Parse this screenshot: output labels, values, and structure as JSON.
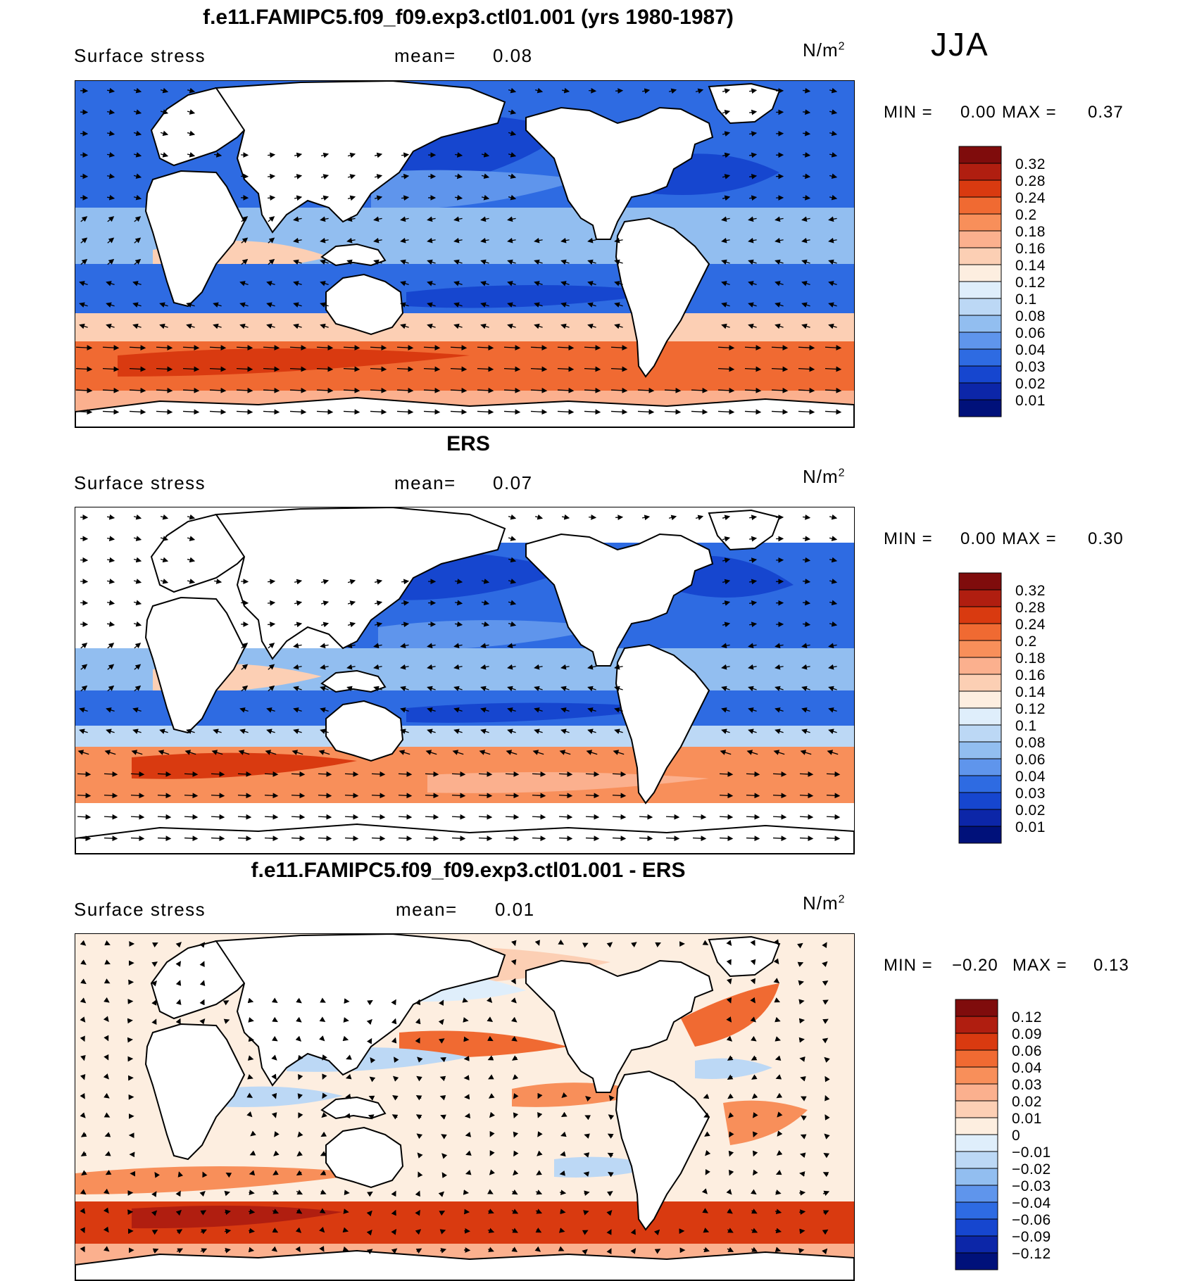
{
  "season": "JJA",
  "panels": [
    {
      "title": "f.e11.FAMIPC5.f09_f09.exp3.ctl01.001 (yrs 1980-1987)",
      "field": "Surface stress",
      "mean_label": "mean=",
      "mean_value": "0.08",
      "unit": "N/m",
      "unit_sup": "2",
      "min_label": "MIN =",
      "min_value": "0.00",
      "max_label": "MAX =",
      "max_value": "0.37",
      "colorbar": {
        "labels": [
          "0.32",
          "0.28",
          "0.24",
          "0.2",
          "0.18",
          "0.16",
          "0.14",
          "0.12",
          "0.1",
          "0.08",
          "0.06",
          "0.04",
          "0.03",
          "0.02",
          "0.01"
        ],
        "colors": [
          "#7f0c0c",
          "#b01e10",
          "#d93a10",
          "#f06a32",
          "#f88f5a",
          "#fbb08e",
          "#fccfb4",
          "#fdeee0",
          "#dfeefb",
          "#bcd8f5",
          "#92bef0",
          "#5f95ec",
          "#2e6be2",
          "#1646cf",
          "#0c26a8",
          "#00117a"
        ]
      },
      "chart_data": {
        "type": "heatmap",
        "variable": "Surface stress",
        "units": "N/m2",
        "mean": 0.08,
        "min": 0.0,
        "max": 0.37,
        "contour_levels": [
          0.01,
          0.02,
          0.03,
          0.04,
          0.06,
          0.08,
          0.1,
          0.12,
          0.14,
          0.16,
          0.18,
          0.2,
          0.24,
          0.28,
          0.32
        ]
      }
    },
    {
      "title": "ERS",
      "field": "Surface stress",
      "mean_label": "mean=",
      "mean_value": "0.07",
      "unit": "N/m",
      "unit_sup": "2",
      "min_label": "MIN =",
      "min_value": "0.00",
      "max_label": "MAX =",
      "max_value": "0.30",
      "colorbar": {
        "labels": [
          "0.32",
          "0.28",
          "0.24",
          "0.2",
          "0.18",
          "0.16",
          "0.14",
          "0.12",
          "0.1",
          "0.08",
          "0.06",
          "0.04",
          "0.03",
          "0.02",
          "0.01"
        ],
        "colors": [
          "#7f0c0c",
          "#b01e10",
          "#d93a10",
          "#f06a32",
          "#f88f5a",
          "#fbb08e",
          "#fccfb4",
          "#fdeee0",
          "#dfeefb",
          "#bcd8f5",
          "#92bef0",
          "#5f95ec",
          "#2e6be2",
          "#1646cf",
          "#0c26a8",
          "#00117a"
        ]
      },
      "chart_data": {
        "type": "heatmap",
        "variable": "Surface stress",
        "units": "N/m2",
        "mean": 0.07,
        "min": 0.0,
        "max": 0.3,
        "contour_levels": [
          0.01,
          0.02,
          0.03,
          0.04,
          0.06,
          0.08,
          0.1,
          0.12,
          0.14,
          0.16,
          0.18,
          0.2,
          0.24,
          0.28,
          0.32
        ]
      }
    },
    {
      "title": "f.e11.FAMIPC5.f09_f09.exp3.ctl01.001 - ERS",
      "field": "Surface stress",
      "mean_label": "mean=",
      "mean_value": "0.01",
      "unit": "N/m",
      "unit_sup": "2",
      "min_label": "MIN =",
      "min_value": "−0.20",
      "max_label": "MAX =",
      "max_value": "0.13",
      "colorbar": {
        "labels": [
          "0.12",
          "0.09",
          "0.06",
          "0.04",
          "0.03",
          "0.02",
          "0.01",
          "0",
          "−0.01",
          "−0.02",
          "−0.03",
          "−0.04",
          "−0.06",
          "−0.09",
          "−0.12"
        ],
        "colors": [
          "#7f0c0c",
          "#b01e10",
          "#d93a10",
          "#f06a32",
          "#f88f5a",
          "#fbb08e",
          "#fccfb4",
          "#fdeee0",
          "#dfeefb",
          "#bcd8f5",
          "#92bef0",
          "#5f95ec",
          "#2e6be2",
          "#1646cf",
          "#0c26a8",
          "#00117a"
        ]
      },
      "chart_data": {
        "type": "heatmap",
        "variable": "Surface stress",
        "units": "N/m2",
        "mean": 0.01,
        "min": -0.2,
        "max": 0.13,
        "contour_levels": [
          -0.12,
          -0.09,
          -0.06,
          -0.04,
          -0.03,
          -0.02,
          -0.01,
          0,
          0.01,
          0.02,
          0.03,
          0.04,
          0.06,
          0.09,
          0.12
        ]
      }
    }
  ]
}
